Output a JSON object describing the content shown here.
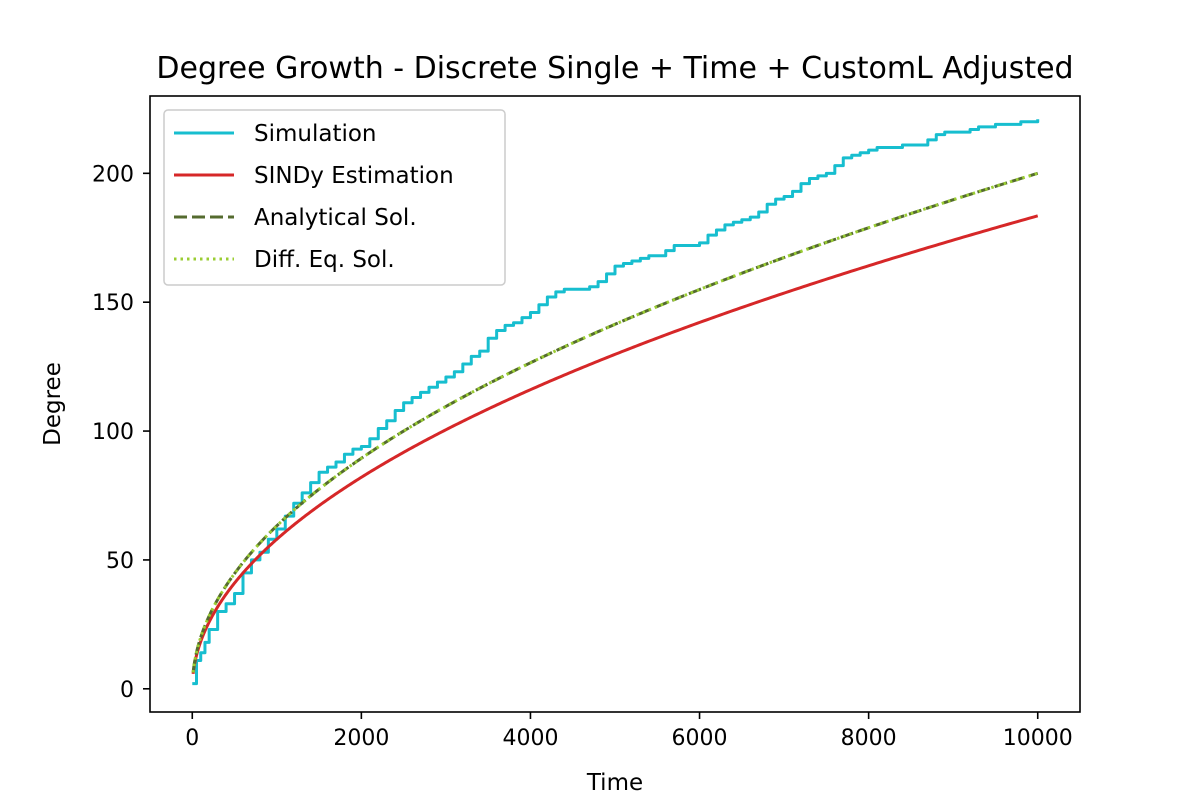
{
  "chart_data": {
    "type": "line",
    "title": "Degree Growth - Discrete Single + Time + CustomL Adjusted",
    "xlabel": "Time",
    "ylabel": "Degree",
    "xlim": [
      -500,
      10500
    ],
    "ylim": [
      -9,
      230
    ],
    "xticks": [
      0,
      2000,
      4000,
      6000,
      8000,
      10000
    ],
    "yticks": [
      0,
      50,
      100,
      150,
      200
    ],
    "grid": false,
    "legend_position": "top-left",
    "series": [
      {
        "name": "Simulation",
        "color": "#17becf",
        "style": "step",
        "x": [
          0,
          50,
          100,
          150,
          200,
          300,
          400,
          500,
          600,
          700,
          800,
          900,
          1000,
          1100,
          1200,
          1300,
          1400,
          1500,
          1600,
          1700,
          1800,
          1900,
          2000,
          2100,
          2200,
          2300,
          2400,
          2500,
          2600,
          2700,
          2800,
          2900,
          3000,
          3100,
          3200,
          3300,
          3400,
          3500,
          3600,
          3700,
          3800,
          3900,
          4000,
          4100,
          4200,
          4300,
          4400,
          4500,
          4600,
          4700,
          4800,
          4900,
          5000,
          5100,
          5200,
          5300,
          5400,
          5500,
          5600,
          5700,
          5800,
          5900,
          6000,
          6100,
          6200,
          6300,
          6400,
          6500,
          6600,
          6700,
          6800,
          6900,
          7000,
          7100,
          7200,
          7300,
          7400,
          7500,
          7600,
          7700,
          7800,
          7900,
          8000,
          8100,
          8200,
          8300,
          8400,
          8500,
          8600,
          8700,
          8800,
          8900,
          9000,
          9100,
          9200,
          9300,
          9400,
          9500,
          9600,
          9700,
          9800,
          9900,
          10000
        ],
        "y": [
          2,
          11,
          14,
          18,
          23,
          30,
          33,
          37,
          45,
          50,
          53,
          58,
          62,
          67,
          72,
          76,
          80,
          84,
          86,
          88,
          91,
          93,
          94,
          97,
          101,
          104,
          108,
          111,
          113,
          115,
          117,
          119,
          121,
          123,
          126,
          129,
          131,
          136,
          139,
          141,
          142,
          144,
          146,
          149,
          152,
          154,
          155,
          155,
          155,
          156,
          158,
          161,
          164,
          165,
          166,
          167,
          168,
          168,
          170,
          172,
          172,
          172,
          173,
          176,
          178,
          180,
          181,
          182,
          183,
          185,
          188,
          190,
          191,
          193,
          196,
          198,
          199,
          200,
          203,
          206,
          207,
          208,
          209,
          210,
          210,
          210,
          211,
          211,
          211,
          213,
          215,
          216,
          216,
          216,
          217,
          218,
          218,
          219,
          219,
          219,
          220,
          220,
          221
        ]
      },
      {
        "name": "SINDy Estimation",
        "color": "#d62728",
        "style": "solid",
        "formula": "sqrt",
        "coefficient": 1.835
      },
      {
        "name": "Analytical Sol.",
        "color": "#556b2f",
        "style": "dashed",
        "formula": "sqrt",
        "coefficient": 2.0
      },
      {
        "name": "Diff. Eq. Sol.",
        "color": "#9acd32",
        "style": "dotted",
        "formula": "sqrt",
        "coefficient": 2.0
      }
    ]
  }
}
